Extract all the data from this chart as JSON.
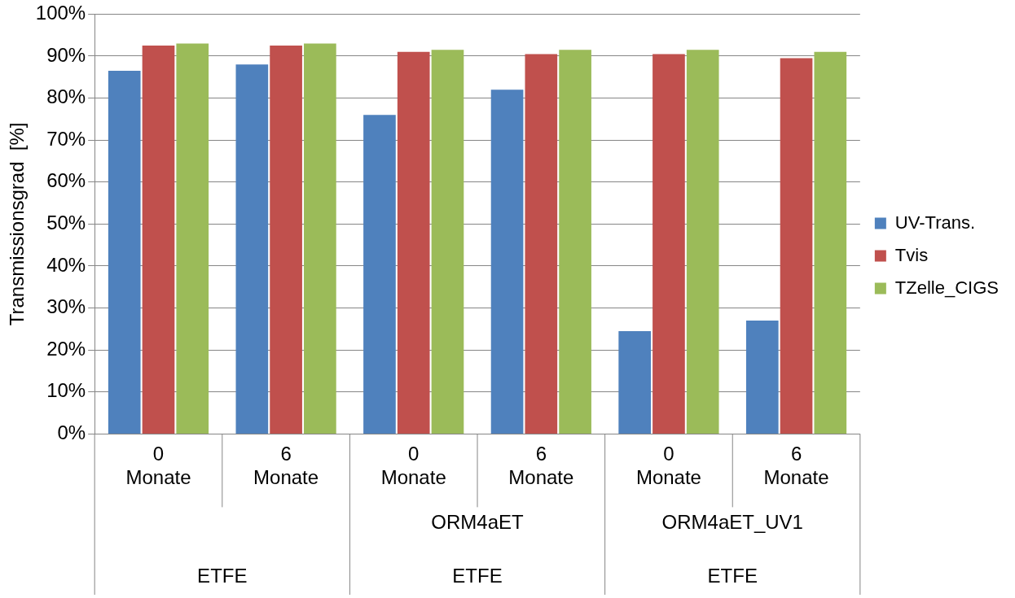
{
  "chart_data": {
    "type": "bar",
    "ylabel": "Transmissionsgrad  [%]",
    "categories": [
      "0\nMonate",
      "6\nMonate",
      "0\nMonate",
      "6\nMonate",
      "0\nMonate",
      "6\nMonate"
    ],
    "series": [
      {
        "name": "UV-Trans.",
        "color": "#4f81bd",
        "values": [
          86.5,
          88,
          76,
          82,
          24.5,
          27
        ]
      },
      {
        "name": "Tvis",
        "color": "#c0504d",
        "values": [
          92.5,
          92.5,
          91,
          90.5,
          90.5,
          89.5
        ]
      },
      {
        "name": "TZelle_CIGS",
        "color": "#9bbb59",
        "values": [
          93,
          93,
          91.5,
          91.5,
          91.5,
          91
        ]
      }
    ],
    "ylim": [
      0,
      100
    ],
    "yticks": [
      {
        "value": 0,
        "label": "0%"
      },
      {
        "value": 10,
        "label": "10%"
      },
      {
        "value": 20,
        "label": "20%"
      },
      {
        "value": 30,
        "label": "30%"
      },
      {
        "value": 40,
        "label": "40%"
      },
      {
        "value": 50,
        "label": "50%"
      },
      {
        "value": 60,
        "label": "60%"
      },
      {
        "value": 70,
        "label": "70%"
      },
      {
        "value": 80,
        "label": "80%"
      },
      {
        "value": 90,
        "label": "90%"
      },
      {
        "value": 100,
        "label": "100%"
      }
    ],
    "annotations": [
      "ORM4aET",
      "ORM4aET_UV1",
      "ETFE",
      "ETFE",
      "ETFE"
    ],
    "grid": "y",
    "legend": "right"
  }
}
